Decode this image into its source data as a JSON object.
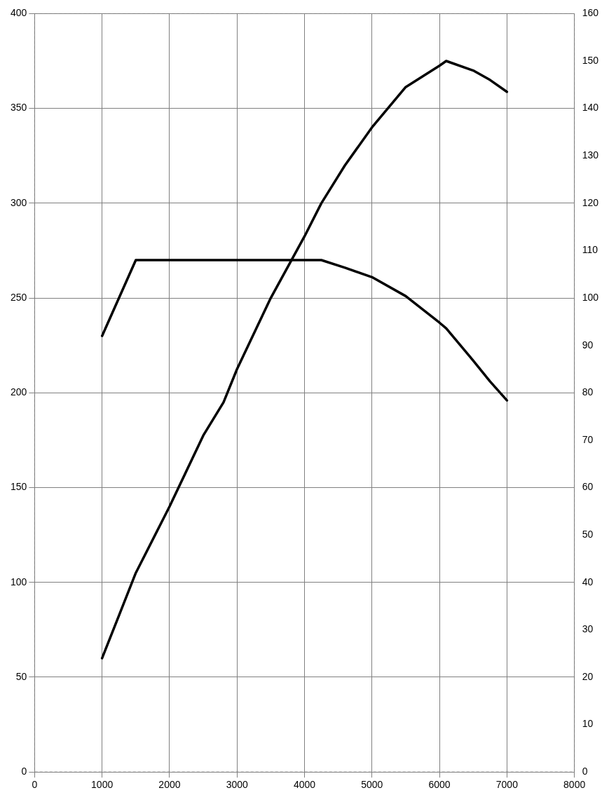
{
  "chart_data": {
    "type": "line",
    "marker": "none",
    "line_style": "solid",
    "grid": true,
    "legend": false,
    "xlim": [
      0,
      8000
    ],
    "xticks": [
      0,
      1000,
      2000,
      3000,
      4000,
      5000,
      6000,
      7000,
      8000
    ],
    "ylim": [
      0,
      400
    ],
    "yticks": [
      0,
      50,
      100,
      150,
      200,
      250,
      300,
      350,
      400
    ],
    "y2lim": [
      0,
      160
    ],
    "y2ticks": [
      0,
      10,
      20,
      30,
      40,
      50,
      60,
      70,
      80,
      90,
      100,
      110,
      120,
      130,
      140,
      150,
      160
    ],
    "series": [
      {
        "color": "#000000",
        "x": [
          1000,
          1500,
          4250,
          4600,
          5000,
          5500,
          6000,
          6100,
          6500,
          6750,
          7000
        ],
        "values": [
          230,
          270,
          270,
          266,
          261,
          251,
          237,
          234,
          217,
          206,
          196
        ]
      },
      {
        "color": "#000000",
        "axis": "y2",
        "x": [
          1000,
          1250,
          1500,
          2000,
          2500,
          2800,
          3000,
          3500,
          4000,
          4250,
          4600,
          5000,
          5500,
          6000,
          6100,
          6500,
          6750,
          7000
        ],
        "values": [
          24,
          33,
          42,
          56,
          71,
          78,
          85,
          100,
          113,
          120,
          128,
          136,
          144.5,
          149,
          150,
          148,
          146,
          143.5
        ]
      }
    ]
  }
}
